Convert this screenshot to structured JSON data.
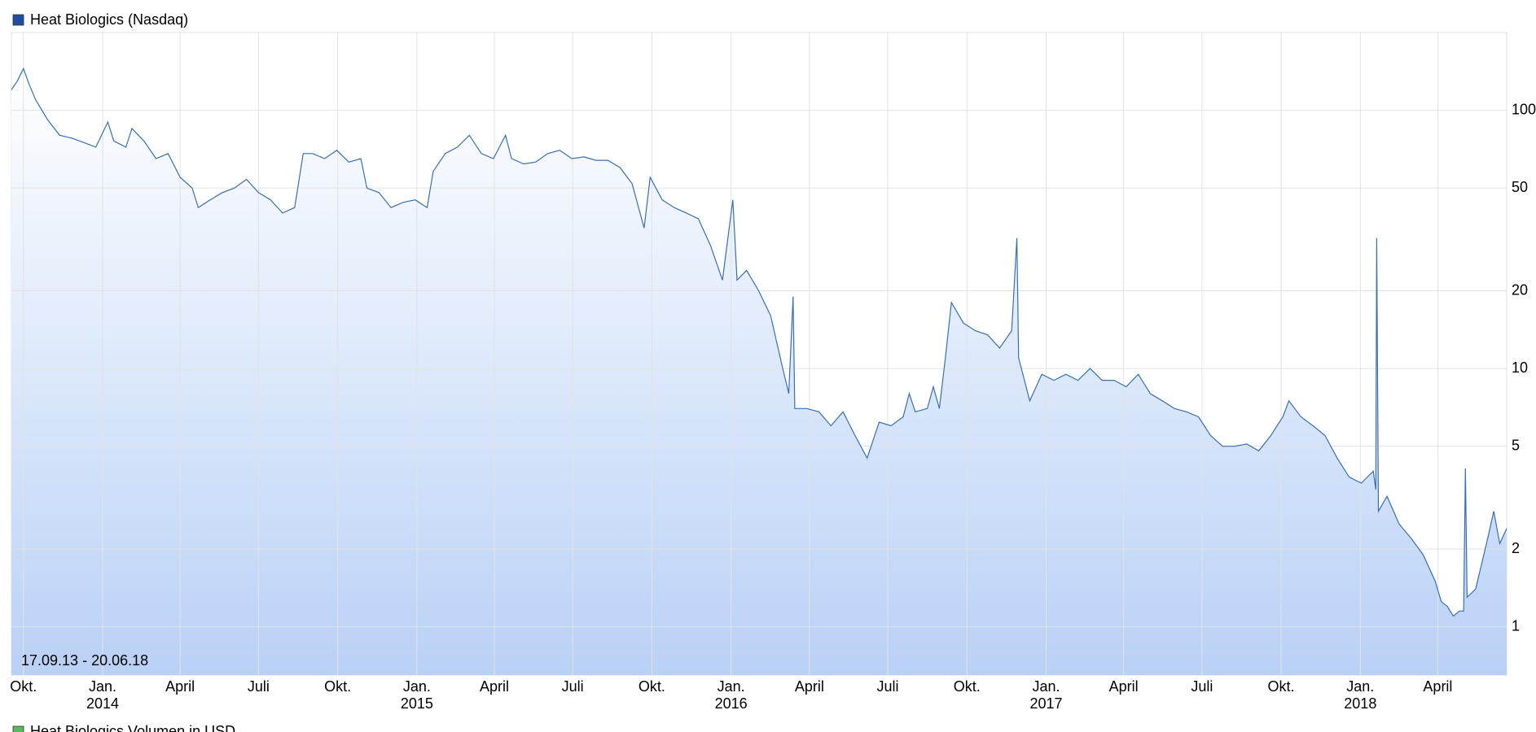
{
  "chart_data": {
    "type": "area",
    "legend": "Heat Biologics (Nasdaq)",
    "legend_color": "#1f4fa0",
    "range_label": "17.09.13 - 20.06.18",
    "secondary_legend": "Heat Biologics Volumen in USD",
    "secondary_legend_color": "#5cb85c",
    "log_scale": true,
    "grid": true,
    "color": "#3a6fb0",
    "fill_top": "#ffffff",
    "fill_bottom": "#b9d1f6",
    "xlim": [
      "2013-09-17",
      "2018-06-20"
    ],
    "ylim": [
      0.65,
      200
    ],
    "yticks": [
      1,
      2,
      5,
      10,
      20,
      50,
      100
    ],
    "xticks": [
      {
        "value": "2013-10-01",
        "label": "Okt."
      },
      {
        "value": "2014-01-01",
        "label": "Jan.",
        "year": "2014"
      },
      {
        "value": "2014-04-01",
        "label": "April"
      },
      {
        "value": "2014-07-01",
        "label": "Juli"
      },
      {
        "value": "2014-10-01",
        "label": "Okt."
      },
      {
        "value": "2015-01-01",
        "label": "Jan.",
        "year": "2015"
      },
      {
        "value": "2015-04-01",
        "label": "April"
      },
      {
        "value": "2015-07-01",
        "label": "Juli"
      },
      {
        "value": "2015-10-01",
        "label": "Okt."
      },
      {
        "value": "2016-01-01",
        "label": "Jan.",
        "year": "2016"
      },
      {
        "value": "2016-04-01",
        "label": "April"
      },
      {
        "value": "2016-07-01",
        "label": "Juli"
      },
      {
        "value": "2016-10-01",
        "label": "Okt."
      },
      {
        "value": "2017-01-01",
        "label": "Jan.",
        "year": "2017"
      },
      {
        "value": "2017-04-01",
        "label": "April"
      },
      {
        "value": "2017-07-01",
        "label": "Juli"
      },
      {
        "value": "2017-10-01",
        "label": "Okt."
      },
      {
        "value": "2018-01-01",
        "label": "Jan.",
        "year": "2018"
      },
      {
        "value": "2018-04-01",
        "label": "April"
      }
    ],
    "x": [
      "2013-09-17",
      "2013-09-24",
      "2013-10-01",
      "2013-10-08",
      "2013-10-15",
      "2013-10-29",
      "2013-11-12",
      "2013-11-26",
      "2013-12-10",
      "2013-12-24",
      "2014-01-07",
      "2014-01-14",
      "2014-01-28",
      "2014-02-04",
      "2014-02-18",
      "2014-03-04",
      "2014-03-18",
      "2014-04-01",
      "2014-04-15",
      "2014-04-22",
      "2014-05-06",
      "2014-05-20",
      "2014-06-03",
      "2014-06-17",
      "2014-07-01",
      "2014-07-15",
      "2014-07-29",
      "2014-08-12",
      "2014-08-22",
      "2014-09-02",
      "2014-09-16",
      "2014-09-30",
      "2014-10-14",
      "2014-10-28",
      "2014-11-04",
      "2014-11-18",
      "2014-12-02",
      "2014-12-16",
      "2014-12-30",
      "2015-01-13",
      "2015-01-20",
      "2015-02-03",
      "2015-02-17",
      "2015-03-03",
      "2015-03-17",
      "2015-03-31",
      "2015-04-14",
      "2015-04-21",
      "2015-05-05",
      "2015-05-19",
      "2015-06-02",
      "2015-06-16",
      "2015-06-30",
      "2015-07-14",
      "2015-07-28",
      "2015-08-11",
      "2015-08-25",
      "2015-09-08",
      "2015-09-22",
      "2015-09-29",
      "2015-10-13",
      "2015-10-27",
      "2015-11-10",
      "2015-11-24",
      "2015-12-08",
      "2015-12-22",
      "2016-01-03",
      "2016-01-08",
      "2016-01-19",
      "2016-02-02",
      "2016-02-16",
      "2016-03-01",
      "2016-03-08",
      "2016-03-13",
      "2016-03-15",
      "2016-03-29",
      "2016-04-12",
      "2016-04-26",
      "2016-05-10",
      "2016-05-24",
      "2016-06-07",
      "2016-06-21",
      "2016-07-05",
      "2016-07-19",
      "2016-07-26",
      "2016-08-02",
      "2016-08-16",
      "2016-08-23",
      "2016-08-30",
      "2016-09-06",
      "2016-09-13",
      "2016-09-27",
      "2016-10-11",
      "2016-10-25",
      "2016-11-08",
      "2016-11-22",
      "2016-11-28",
      "2016-11-30",
      "2016-12-13",
      "2016-12-27",
      "2017-01-10",
      "2017-01-24",
      "2017-02-07",
      "2017-02-21",
      "2017-03-07",
      "2017-03-21",
      "2017-04-04",
      "2017-04-18",
      "2017-05-02",
      "2017-05-16",
      "2017-05-30",
      "2017-06-13",
      "2017-06-27",
      "2017-07-11",
      "2017-07-25",
      "2017-08-08",
      "2017-08-22",
      "2017-09-05",
      "2017-09-19",
      "2017-10-03",
      "2017-10-10",
      "2017-10-24",
      "2017-11-07",
      "2017-11-21",
      "2017-12-05",
      "2017-12-19",
      "2018-01-02",
      "2018-01-09",
      "2018-01-16",
      "2018-01-19",
      "2018-01-20",
      "2018-01-22",
      "2018-02-01",
      "2018-02-15",
      "2018-03-01",
      "2018-03-15",
      "2018-03-29",
      "2018-04-05",
      "2018-04-12",
      "2018-04-19",
      "2018-04-26",
      "2018-05-01",
      "2018-05-03",
      "2018-05-05",
      "2018-05-15",
      "2018-05-29",
      "2018-06-05",
      "2018-06-12",
      "2018-06-20"
    ],
    "values": [
      120,
      130,
      145,
      125,
      110,
      92,
      80,
      78,
      75,
      72,
      90,
      76,
      72,
      85,
      76,
      65,
      68,
      55,
      50,
      42,
      45,
      48,
      50,
      54,
      48,
      45,
      40,
      42,
      68,
      68,
      65,
      70,
      63,
      65,
      50,
      48,
      42,
      44,
      45,
      42,
      58,
      68,
      72,
      80,
      68,
      65,
      80,
      65,
      62,
      63,
      68,
      70,
      65,
      66,
      64,
      64,
      60,
      52,
      35,
      55,
      45,
      42,
      40,
      38,
      30,
      22,
      45,
      22,
      24,
      20,
      16,
      10,
      8,
      19,
      7,
      7,
      6.8,
      6,
      6.8,
      5.5,
      4.5,
      6.2,
      6,
      6.5,
      8,
      6.8,
      7,
      8.5,
      7,
      11,
      18,
      15,
      14,
      13.5,
      12,
      14,
      32,
      11,
      7.5,
      9.5,
      9,
      9.5,
      9,
      10,
      9,
      9,
      8.5,
      9.5,
      8,
      7.5,
      7,
      6.8,
      6.5,
      5.5,
      5,
      5,
      5.1,
      4.8,
      5.5,
      6.5,
      7.5,
      6.5,
      6,
      5.5,
      4.5,
      3.8,
      3.6,
      3.8,
      4,
      3.4,
      32,
      2.8,
      3.2,
      2.5,
      2.2,
      1.9,
      1.5,
      1.25,
      1.2,
      1.1,
      1.15,
      1.15,
      4.1,
      1.3,
      1.4,
      2.2,
      2.8,
      2.1,
      2.4
    ]
  }
}
